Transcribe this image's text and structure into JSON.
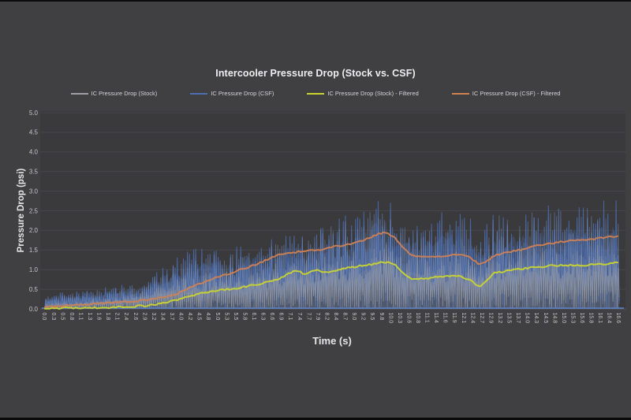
{
  "chart_data": {
    "type": "line",
    "title": "Intercooler Pressure Drop (Stock vs. CSF)",
    "xlabel": "Time (s)",
    "ylabel": "Pressure Drop (psi)",
    "ylim": [
      0,
      5
    ],
    "ytick_labels": [
      "0.0",
      "0.5",
      "1.0",
      "1.5",
      "2.0",
      "2.5",
      "3.0",
      "3.5",
      "4.0",
      "4.5",
      "5.0"
    ],
    "xlim": [
      0,
      16.6
    ],
    "xtick_labels": [
      "0.0",
      "0.3",
      "0.5",
      "0.8",
      "1.1",
      "1.3",
      "1.6",
      "1.8",
      "2.1",
      "2.4",
      "2.6",
      "2.9",
      "3.2",
      "3.4",
      "3.7",
      "4.0",
      "4.2",
      "4.5",
      "4.8",
      "5.0",
      "5.3",
      "5.5",
      "5.8",
      "6.1",
      "6.3",
      "6.6",
      "6.9",
      "7.1",
      "7.4",
      "7.7",
      "7.9",
      "8.2",
      "8.4",
      "8.7",
      "9.0",
      "9.2",
      "9.5",
      "9.8",
      "10.0",
      "10.3",
      "10.6",
      "10.8",
      "11.1",
      "11.4",
      "11.6",
      "11.9",
      "12.1",
      "12.4",
      "12.7",
      "12.9",
      "13.2",
      "13.5",
      "13.7",
      "14.0",
      "14.3",
      "14.5",
      "14.8",
      "15.0",
      "15.3",
      "15.6",
      "15.8",
      "16.1",
      "16.4",
      "16.6"
    ],
    "grid": "horizontal",
    "legend_position": "top",
    "colors": {
      "background": "#403f42",
      "plot_background": "#3a3a3d",
      "gridline": "#51515a",
      "axis_line": "#5a5a60",
      "baseline_blue": "#5b7fc0",
      "title_text": "#eeeef1",
      "tick_text": "#c5c5c9",
      "legend_text": "#d5d5d9"
    },
    "series": [
      {
        "name": "IC Pressure Drop (Stock)",
        "kind": "raw-noisy",
        "color": "#9fa0a6",
        "description": "noisy raw trace oscillating between 0 and envelope",
        "envelope_max": [
          [
            0,
            0.15
          ],
          [
            1,
            0.2
          ],
          [
            2,
            0.3
          ],
          [
            3,
            0.45
          ],
          [
            3.5,
            0.6
          ],
          [
            4,
            0.8
          ],
          [
            5,
            0.9
          ],
          [
            6,
            1.0
          ],
          [
            7,
            1.15
          ],
          [
            8,
            1.25
          ],
          [
            9,
            1.4
          ],
          [
            9.8,
            1.6
          ],
          [
            10.5,
            1.3
          ],
          [
            11,
            1.35
          ],
          [
            12,
            1.4
          ],
          [
            12.3,
            1.35
          ],
          [
            12.55,
            1.05
          ],
          [
            12.8,
            1.35
          ],
          [
            13,
            1.45
          ],
          [
            14,
            1.5
          ],
          [
            15,
            1.5
          ],
          [
            16,
            1.55
          ],
          [
            16.6,
            1.6
          ]
        ]
      },
      {
        "name": "IC Pressure Drop (CSF)",
        "kind": "raw-noisy",
        "color": "#4d6fb0",
        "highlight": "#7e98cc",
        "description": "noisy raw trace oscillating between 0 and envelope",
        "envelope_max": [
          [
            0,
            0.35
          ],
          [
            0.5,
            0.4
          ],
          [
            1,
            0.45
          ],
          [
            1.5,
            0.5
          ],
          [
            2,
            0.55
          ],
          [
            2.5,
            0.62
          ],
          [
            3,
            0.75
          ],
          [
            3.5,
            1.05
          ],
          [
            4,
            1.35
          ],
          [
            4.5,
            1.5
          ],
          [
            5,
            1.52
          ],
          [
            5.5,
            1.55
          ],
          [
            6,
            1.7
          ],
          [
            6.5,
            1.85
          ],
          [
            7,
            2.0
          ],
          [
            7.5,
            2.05
          ],
          [
            8,
            2.1
          ],
          [
            8.5,
            2.25
          ],
          [
            9,
            2.4
          ],
          [
            9.5,
            2.7
          ],
          [
            9.8,
            2.9
          ],
          [
            10.1,
            2.55
          ],
          [
            10.5,
            2.1
          ],
          [
            11,
            2.25
          ],
          [
            11.5,
            2.35
          ],
          [
            12,
            2.4
          ],
          [
            12.3,
            2.2
          ],
          [
            12.55,
            1.9
          ],
          [
            12.8,
            2.3
          ],
          [
            13,
            2.45
          ],
          [
            13.5,
            2.5
          ],
          [
            14,
            2.55
          ],
          [
            14.5,
            2.5
          ],
          [
            15,
            2.6
          ],
          [
            15.5,
            2.7
          ],
          [
            16,
            2.6
          ],
          [
            16.6,
            2.7
          ]
        ]
      },
      {
        "name": "IC Pressure Drop (Stock) - Filtered",
        "kind": "filtered-line",
        "color": "#c9d430",
        "points": [
          [
            0,
            0.02
          ],
          [
            0.5,
            0.02
          ],
          [
            1,
            0.03
          ],
          [
            1.5,
            0.03
          ],
          [
            2,
            0.04
          ],
          [
            2.5,
            0.06
          ],
          [
            3,
            0.09
          ],
          [
            3.4,
            0.14
          ],
          [
            3.8,
            0.22
          ],
          [
            4.2,
            0.32
          ],
          [
            4.6,
            0.42
          ],
          [
            5,
            0.47
          ],
          [
            5.5,
            0.52
          ],
          [
            6,
            0.6
          ],
          [
            6.4,
            0.68
          ],
          [
            6.8,
            0.78
          ],
          [
            7.1,
            0.92
          ],
          [
            7.3,
            0.98
          ],
          [
            7.5,
            0.88
          ],
          [
            7.7,
            0.95
          ],
          [
            7.9,
            1.0
          ],
          [
            8.1,
            0.92
          ],
          [
            8.4,
            0.98
          ],
          [
            8.7,
            1.04
          ],
          [
            9,
            1.08
          ],
          [
            9.4,
            1.13
          ],
          [
            9.8,
            1.2
          ],
          [
            10.1,
            1.15
          ],
          [
            10.35,
            0.92
          ],
          [
            10.6,
            0.78
          ],
          [
            10.9,
            0.76
          ],
          [
            11.2,
            0.8
          ],
          [
            11.6,
            0.83
          ],
          [
            12,
            0.85
          ],
          [
            12.3,
            0.72
          ],
          [
            12.55,
            0.57
          ],
          [
            12.8,
            0.75
          ],
          [
            13,
            0.92
          ],
          [
            13.4,
            0.97
          ],
          [
            13.8,
            1.02
          ],
          [
            14.2,
            1.06
          ],
          [
            14.6,
            1.1
          ],
          [
            15,
            1.12
          ],
          [
            15.4,
            1.1
          ],
          [
            15.8,
            1.13
          ],
          [
            16.2,
            1.15
          ],
          [
            16.6,
            1.18
          ]
        ]
      },
      {
        "name": "IC Pressure Drop (CSF) - Filtered",
        "kind": "filtered-line",
        "color": "#cf8153",
        "points": [
          [
            0,
            0.05
          ],
          [
            0.5,
            0.08
          ],
          [
            1,
            0.1
          ],
          [
            1.5,
            0.13
          ],
          [
            2,
            0.16
          ],
          [
            2.5,
            0.19
          ],
          [
            3,
            0.23
          ],
          [
            3.3,
            0.28
          ],
          [
            3.7,
            0.35
          ],
          [
            4,
            0.45
          ],
          [
            4.3,
            0.58
          ],
          [
            4.7,
            0.72
          ],
          [
            5,
            0.82
          ],
          [
            5.5,
            0.95
          ],
          [
            6,
            1.1
          ],
          [
            6.5,
            1.28
          ],
          [
            6.8,
            1.38
          ],
          [
            7.1,
            1.42
          ],
          [
            7.4,
            1.47
          ],
          [
            7.7,
            1.5
          ],
          [
            8,
            1.52
          ],
          [
            8.3,
            1.58
          ],
          [
            8.7,
            1.63
          ],
          [
            9,
            1.7
          ],
          [
            9.3,
            1.78
          ],
          [
            9.6,
            1.9
          ],
          [
            9.85,
            1.95
          ],
          [
            10.1,
            1.82
          ],
          [
            10.35,
            1.55
          ],
          [
            10.6,
            1.38
          ],
          [
            10.9,
            1.33
          ],
          [
            11.2,
            1.33
          ],
          [
            11.6,
            1.36
          ],
          [
            12,
            1.4
          ],
          [
            12.3,
            1.32
          ],
          [
            12.55,
            1.12
          ],
          [
            12.8,
            1.22
          ],
          [
            13,
            1.36
          ],
          [
            13.4,
            1.45
          ],
          [
            13.8,
            1.52
          ],
          [
            14.2,
            1.6
          ],
          [
            14.6,
            1.67
          ],
          [
            15,
            1.72
          ],
          [
            15.4,
            1.75
          ],
          [
            15.8,
            1.78
          ],
          [
            16.2,
            1.82
          ],
          [
            16.6,
            1.86
          ]
        ]
      }
    ]
  }
}
